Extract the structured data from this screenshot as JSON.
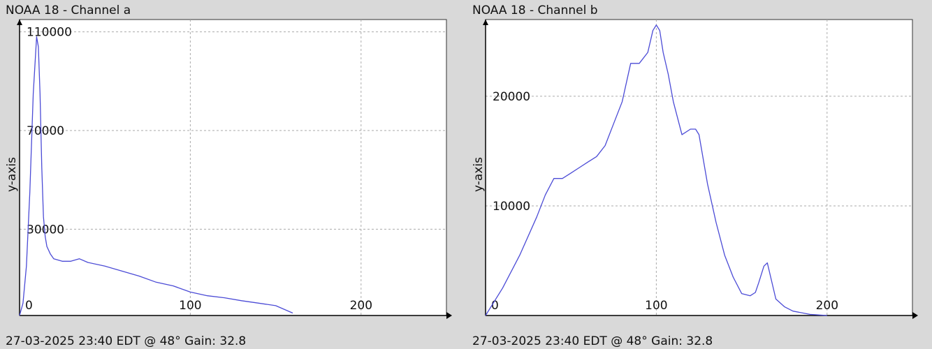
{
  "chart_data": [
    {
      "type": "line",
      "title": "NOAA 18 - Channel a",
      "footer": "27-03-2025 23:40 EDT @ 48° Gain: 32.8",
      "ylabel": "y-axis",
      "xlabel": "",
      "xlim": [
        0,
        250
      ],
      "ylim": [
        -5000,
        115000
      ],
      "xticks": [
        0,
        100,
        200
      ],
      "yticks": [
        30000,
        70000,
        110000
      ],
      "xtick_labels": [
        "0",
        "100",
        "200"
      ],
      "ytick_labels": [
        "30000",
        "70000",
        "110000"
      ],
      "grid": true,
      "line_color": "#4b4bd6",
      "series": [
        {
          "x": [
            0,
            2,
            4,
            6,
            8,
            10,
            11,
            12,
            13,
            14,
            15,
            16,
            18,
            20,
            25,
            30,
            35,
            40,
            50,
            60,
            70,
            80,
            90,
            100,
            110,
            120,
            130,
            140,
            150,
            160
          ],
          "values": [
            -5000,
            0,
            15000,
            45000,
            85000,
            108000,
            104000,
            85000,
            55000,
            35000,
            27000,
            23000,
            20000,
            18000,
            17000,
            17000,
            18000,
            16500,
            15000,
            13000,
            11000,
            8500,
            7000,
            4500,
            3000,
            2200,
            1000,
            0,
            -1000,
            -4000
          ]
        }
      ]
    },
    {
      "type": "line",
      "title": "NOAA 18 - Channel b",
      "footer": "27-03-2025 23:40 EDT @ 48° Gain: 32.8",
      "ylabel": "y-axis",
      "xlabel": "",
      "xlim": [
        0,
        250
      ],
      "ylim": [
        0,
        27000
      ],
      "xticks": [
        0,
        100,
        200
      ],
      "yticks": [
        10000,
        20000
      ],
      "xtick_labels": [
        "0",
        "100",
        "200"
      ],
      "ytick_labels": [
        "10000",
        "20000"
      ],
      "grid": true,
      "line_color": "#4b4bd6",
      "series": [
        {
          "x": [
            0,
            10,
            20,
            30,
            35,
            40,
            45,
            50,
            55,
            60,
            65,
            70,
            75,
            80,
            85,
            90,
            95,
            98,
            100,
            102,
            104,
            107,
            110,
            115,
            120,
            123,
            125,
            130,
            135,
            140,
            145,
            150,
            155,
            158,
            160,
            163,
            165,
            167,
            170,
            175,
            180,
            190,
            200
          ],
          "values": [
            0,
            2500,
            5500,
            9000,
            11000,
            12500,
            12500,
            13000,
            13500,
            14000,
            14500,
            15500,
            17500,
            19500,
            23000,
            23000,
            24000,
            26000,
            26500,
            26000,
            24000,
            22000,
            19500,
            16500,
            17000,
            17000,
            16500,
            12000,
            8500,
            5500,
            3500,
            2000,
            1800,
            2100,
            3000,
            4500,
            4800,
            3500,
            1500,
            800,
            400,
            100,
            0
          ]
        }
      ]
    }
  ]
}
